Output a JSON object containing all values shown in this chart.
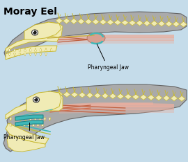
{
  "bg_color": "#c5dcea",
  "title": "Moray Eel",
  "title_fontsize": 10,
  "body_color": "#aaaaaa",
  "body_color2": "#989898",
  "body_outline": "#666666",
  "bone_color": "#f0ebb5",
  "bone_outline": "#c8b830",
  "muscle_color1": "#e8afa0",
  "muscle_color2": "#d89888",
  "pharyngeal_color": "#40b8b8",
  "pharyngeal_outline": "#208888",
  "ligament_color": "#c06040",
  "ligament_color2": "#d07050",
  "eye_white": "#ffffff",
  "eye_dark": "#222222",
  "label1_text": "Pharyngeal Jaw",
  "label2_text": "Pharyngeal Jaw",
  "bump_color": "#cc9988"
}
